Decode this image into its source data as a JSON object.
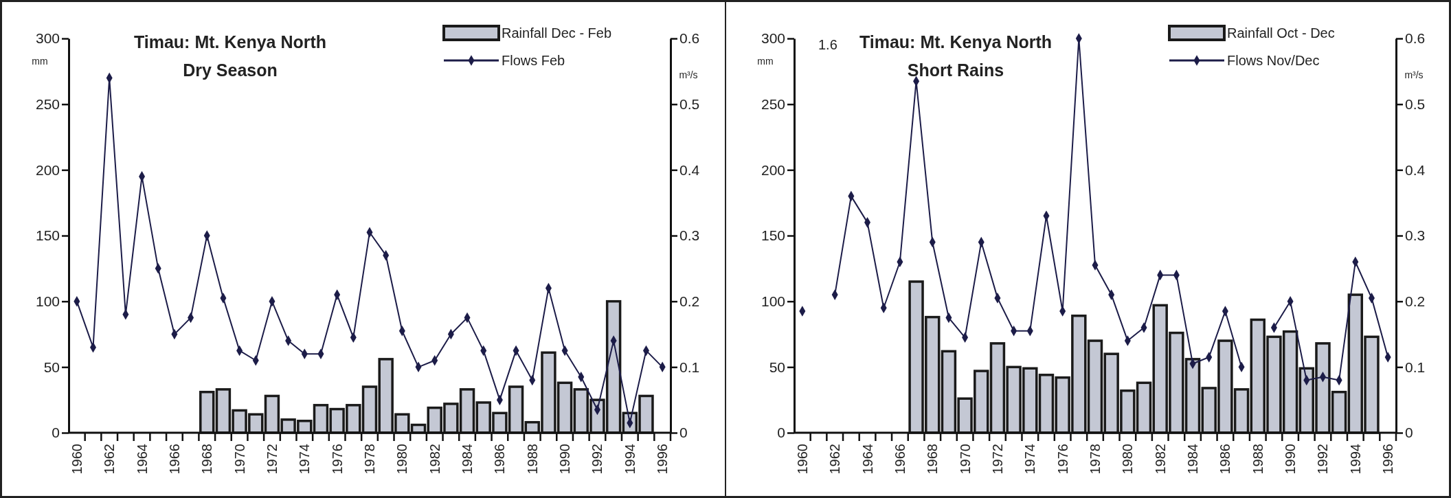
{
  "chart_data": [
    {
      "type": "bar",
      "title": "Timau: Mt. Kenya North",
      "subtitle": "Dry Season",
      "ylabel": "mm",
      "y2label": "m³/s",
      "categories": [
        "1960",
        null,
        "1962",
        null,
        "1964",
        null,
        "1966",
        null,
        "1968",
        null,
        "1970",
        null,
        "1972",
        null,
        "1974",
        null,
        "1976",
        null,
        "1978",
        null,
        "1980",
        null,
        "1982",
        null,
        "1984",
        null,
        "1986",
        null,
        "1988",
        null,
        "1990",
        null,
        "1992",
        null,
        "1994",
        null,
        "1996"
      ],
      "series": [
        {
          "name": "Rainfall Dec - Feb",
          "color": "#c4c8d4",
          "values": [
            null,
            null,
            null,
            null,
            null,
            null,
            null,
            null,
            31,
            33,
            17,
            14,
            28,
            10,
            9,
            21,
            18,
            21,
            35,
            56,
            14,
            6,
            19,
            22,
            33,
            23,
            15,
            35,
            8,
            61,
            38,
            33,
            25,
            100,
            15,
            28,
            null
          ]
        },
        {
          "name": "Flows Feb",
          "type": "line",
          "axis": "y2",
          "color": "#1c1c48",
          "values": [
            0.2,
            0.13,
            0.54,
            0.18,
            0.39,
            0.25,
            0.15,
            0.175,
            0.3,
            0.205,
            0.125,
            0.11,
            0.2,
            0.14,
            0.12,
            0.12,
            0.21,
            0.145,
            0.305,
            0.27,
            0.155,
            0.1,
            0.11,
            0.15,
            0.175,
            0.125,
            0.05,
            0.125,
            0.08,
            0.22,
            0.125,
            0.085,
            0.035,
            0.14,
            0.015,
            0.125,
            0.1
          ]
        }
      ],
      "ylim": [
        0,
        300
      ],
      "yticks": [
        0,
        50,
        100,
        150,
        200,
        250,
        300
      ],
      "y2lim": [
        0,
        0.6
      ],
      "y2ticks": [
        0,
        0.1,
        0.2,
        0.3,
        0.4,
        0.5,
        0.6
      ],
      "legend": "top right",
      "marker": "diamond",
      "grid": false
    },
    {
      "type": "bar",
      "title": "Timau: Mt. Kenya North",
      "subtitle": "Short Rains",
      "ylabel": "mm",
      "y2label": "m³/s",
      "categories": [
        "1960",
        null,
        "1962",
        null,
        "1964",
        null,
        "1966",
        null,
        "1968",
        null,
        "1970",
        null,
        "1972",
        null,
        "1974",
        null,
        "1976",
        null,
        "1978",
        null,
        "1980",
        null,
        "1982",
        null,
        "1984",
        null,
        "1986",
        null,
        "1988",
        null,
        "1990",
        null,
        "1992",
        null,
        "1994",
        null,
        "1996"
      ],
      "series": [
        {
          "name": "Rainfall Oct - Dec",
          "color": "#c4c8d4",
          "values": [
            null,
            null,
            null,
            null,
            null,
            null,
            null,
            115,
            88,
            62,
            26,
            47,
            68,
            50,
            49,
            44,
            42,
            89,
            70,
            60,
            32,
            38,
            97,
            76,
            56,
            34,
            70,
            33,
            86,
            73,
            77,
            49,
            68,
            31,
            105,
            73,
            null
          ]
        },
        {
          "name": "Flows Nov/Dec",
          "type": "line",
          "axis": "y2",
          "color": "#1c1c48",
          "values": [
            0.185,
            null,
            0.21,
            0.36,
            0.32,
            0.19,
            0.26,
            0.535,
            0.29,
            0.175,
            0.145,
            0.29,
            0.205,
            0.155,
            0.155,
            0.33,
            0.185,
            0.6,
            0.255,
            0.21,
            0.14,
            0.16,
            0.24,
            0.24,
            0.105,
            0.115,
            0.185,
            0.1,
            null,
            0.16,
            0.2,
            0.08,
            0.085,
            0.08,
            0.26,
            0.205,
            0.115
          ]
        }
      ],
      "annotations": [
        "1.6"
      ],
      "ylim": [
        0,
        300
      ],
      "yticks": [
        0,
        50,
        100,
        150,
        200,
        250,
        300
      ],
      "y2lim": [
        0,
        0.6
      ],
      "y2ticks": [
        0,
        0.1,
        0.2,
        0.3,
        0.4,
        0.5,
        0.6
      ],
      "legend": "top right",
      "marker": "diamond",
      "grid": false
    }
  ]
}
